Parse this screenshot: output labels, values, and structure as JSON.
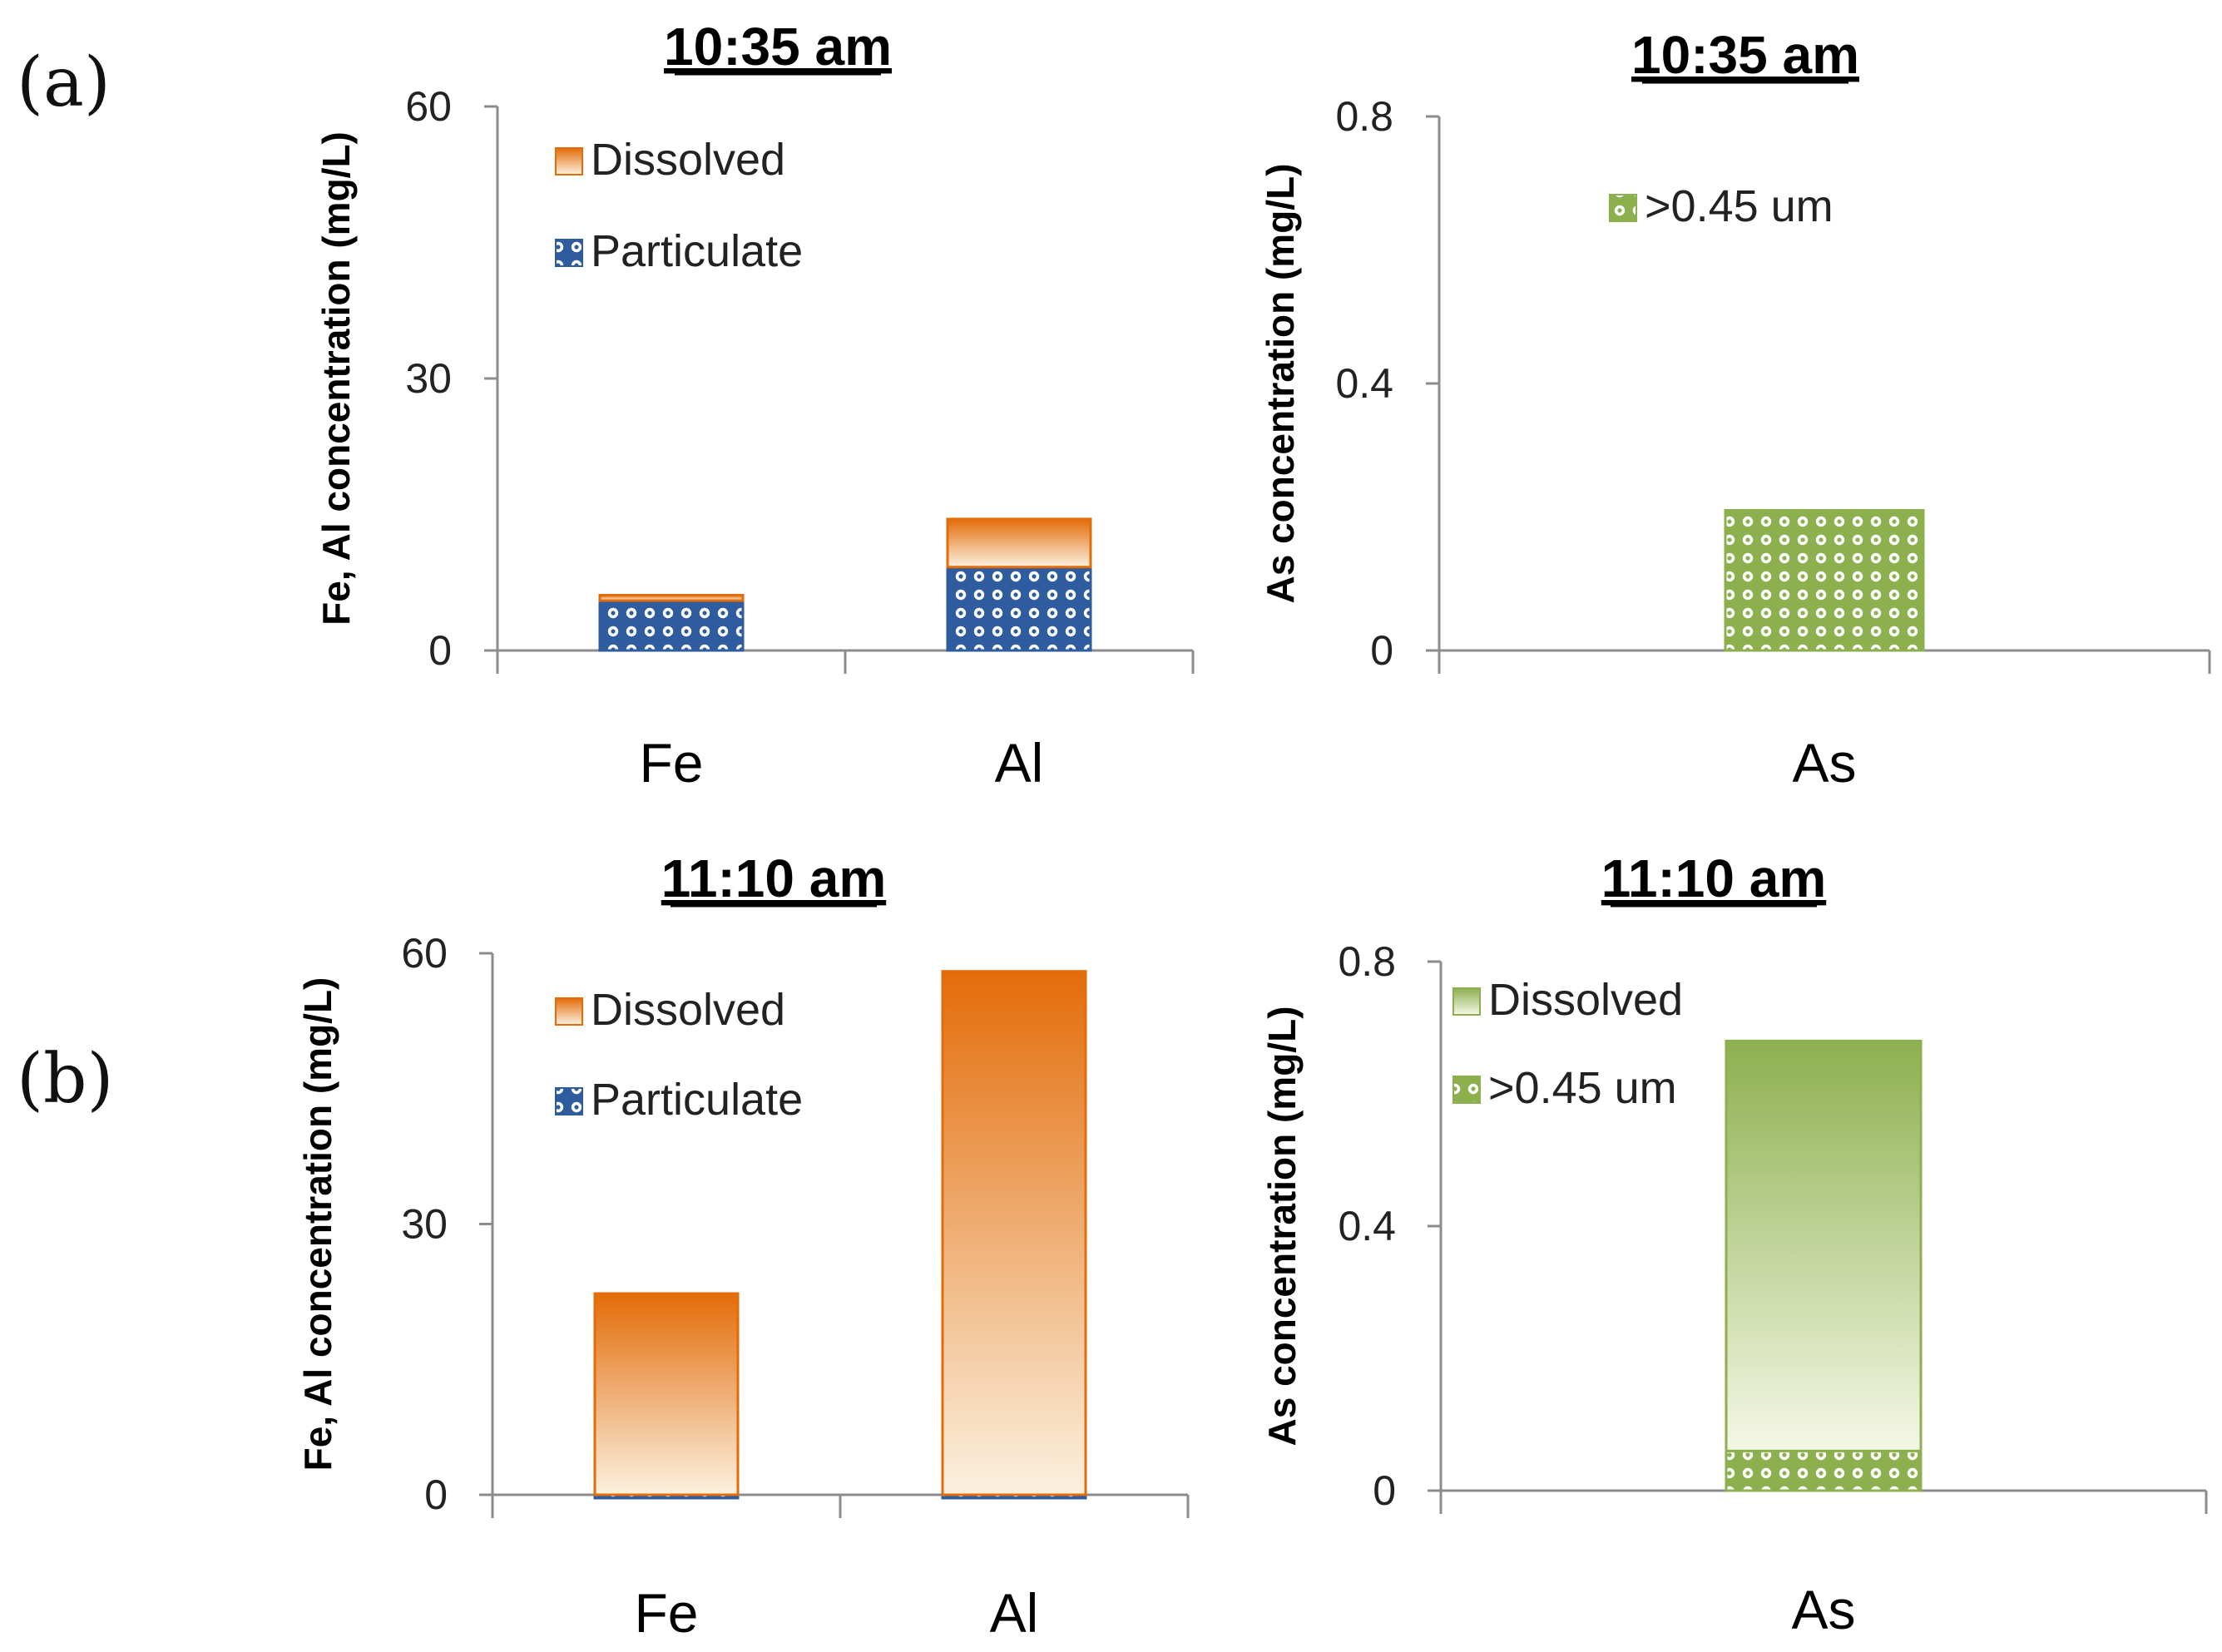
{
  "figure": {
    "panel_a": "(a)",
    "panel_b": "(b)"
  },
  "colors": {
    "orange_dark": "#E36C09",
    "orange_light": "#FBF1E0",
    "blue": "#2E5C9E",
    "green": "#8DB04F",
    "green_light": "#F5F7E6",
    "axis": "#8C8C8C"
  },
  "chart_data": [
    {
      "id": "a-left",
      "type": "bar",
      "stacked": true,
      "title": "10:35 am",
      "ylabel": "Fe, Al concentration (mg/L)",
      "xlabel": "",
      "ylim": [
        0,
        60
      ],
      "yticks": [
        0,
        30,
        60
      ],
      "categories": [
        "Fe",
        "Al"
      ],
      "series": [
        {
          "name": "Particulate",
          "pattern": "dots-blue",
          "values": [
            5.5,
            9.2
          ]
        },
        {
          "name": "Dissolved",
          "pattern": "gradient-orange",
          "values": [
            0.6,
            5.3
          ]
        }
      ],
      "legend": [
        "Dissolved",
        "Particulate"
      ],
      "legend_position": "top-left"
    },
    {
      "id": "a-right",
      "type": "bar",
      "stacked": true,
      "title": "10:35 am",
      "ylabel": "As concentration (mg/L)",
      "xlabel": "",
      "ylim": [
        0,
        0.8
      ],
      "yticks": [
        0,
        0.4,
        0.8
      ],
      "categories": [
        "As"
      ],
      "series": [
        {
          "name": ">0.45 um",
          "pattern": "dots-green",
          "values": [
            0.21
          ]
        }
      ],
      "legend": [
        ">0.45 um"
      ],
      "legend_position": "top-center"
    },
    {
      "id": "b-left",
      "type": "bar",
      "stacked": true,
      "title": "11:10 am",
      "ylabel": "Fe, Al concentration (mg/L)",
      "xlabel": "",
      "ylim": [
        0,
        60
      ],
      "yticks": [
        0,
        30,
        60
      ],
      "categories": [
        "Fe",
        "Al"
      ],
      "series": [
        {
          "name": "Particulate",
          "pattern": "dots-blue",
          "values": [
            0,
            0
          ]
        },
        {
          "name": "Dissolved",
          "pattern": "gradient-orange",
          "values": [
            22.3,
            58
          ]
        }
      ],
      "legend": [
        "Dissolved",
        "Particulate"
      ],
      "legend_position": "top-left"
    },
    {
      "id": "b-right",
      "type": "bar",
      "stacked": true,
      "title": "11:10 am",
      "ylabel": "As concentration (mg/L)",
      "xlabel": "",
      "ylim": [
        0,
        0.8
      ],
      "yticks": [
        0,
        0.4,
        0.8
      ],
      "categories": [
        "As"
      ],
      "series": [
        {
          "name": ">0.45 um",
          "pattern": "dots-green",
          "values": [
            0.06
          ]
        },
        {
          "name": "Dissolved",
          "pattern": "gradient-green",
          "values": [
            0.62
          ]
        }
      ],
      "legend": [
        "Dissolved",
        ">0.45 um"
      ],
      "legend_position": "top-left"
    }
  ]
}
